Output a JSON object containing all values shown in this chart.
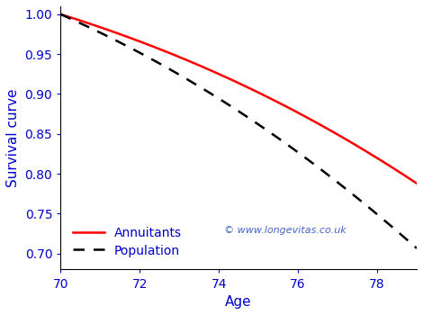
{
  "title": "",
  "xlabel": "Age",
  "ylabel": "Survival curve",
  "x_min": 70,
  "x_max": 79,
  "y_min": 0.68,
  "y_max": 1.01,
  "x_ticks": [
    70,
    72,
    74,
    76,
    78
  ],
  "y_ticks": [
    0.7,
    0.75,
    0.8,
    0.85,
    0.9,
    0.95,
    1.0
  ],
  "annuitants_color": "#ff0000",
  "population_color": "#000000",
  "label_color": "#0000cc",
  "watermark": "© www.longevitas.co.uk",
  "watermark_color": "#4466cc",
  "legend_annuitants": "Annuitants",
  "legend_population": "Population",
  "ann_mu0": 0.0155,
  "ann_beta": 0.11,
  "pop_mu0": 0.022,
  "pop_beta": 0.115,
  "background_color": "#ffffff"
}
